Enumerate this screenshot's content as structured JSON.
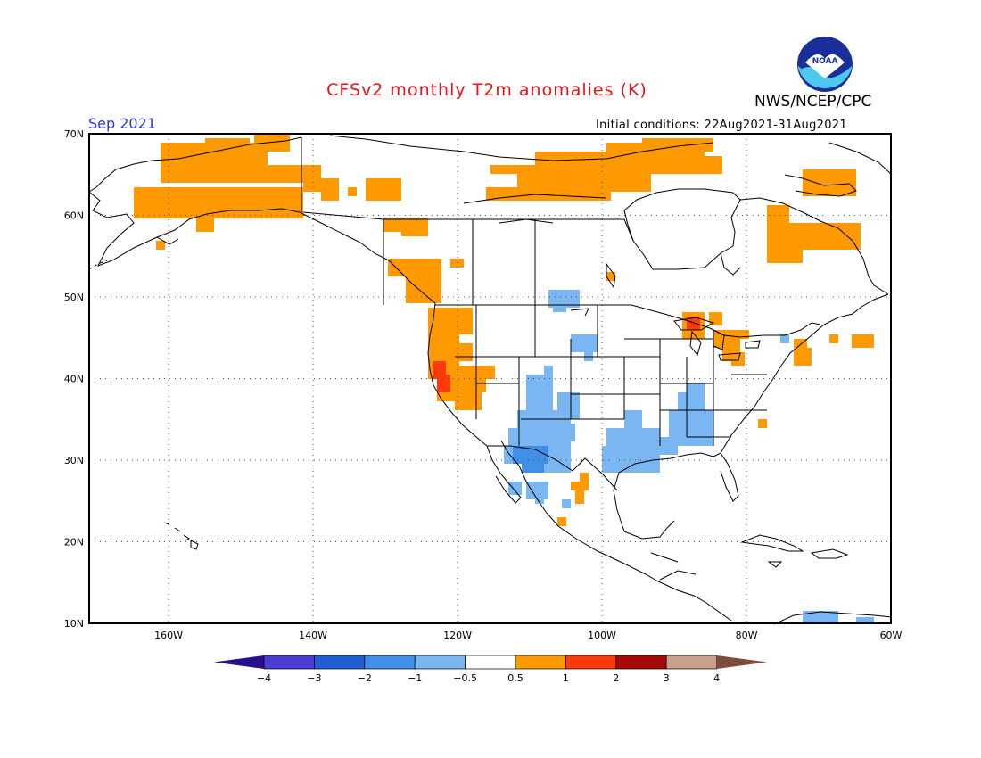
{
  "header": {
    "title": "CFSv2 monthly T2m anomalies (K)",
    "agency": "NWS/NCEP/CPC",
    "logo_text": "NOAA",
    "valid_month": "Sep 2021",
    "initial_conditions": "Initial conditions: 22Aug2021-31Aug2021"
  },
  "map": {
    "region": "North America",
    "projection": "lat-lon",
    "lon_range": [
      -171,
      -60
    ],
    "lat_range": [
      10,
      70
    ],
    "lon_ticks": [
      "160W",
      "140W",
      "120W",
      "100W",
      "80W",
      "60W"
    ],
    "lat_ticks": [
      "10N",
      "20N",
      "30N",
      "40N",
      "50N",
      "60N",
      "70N"
    ],
    "grid": "dotted"
  },
  "colorbar": {
    "labels": [
      "−4",
      "−3",
      "−2",
      "−1",
      "−0.5",
      "0.5",
      "1",
      "2",
      "3",
      "4"
    ],
    "colors": [
      "#2a0c8e",
      "#4b3dd4",
      "#1f5fd2",
      "#3f8ee8",
      "#79b6f2",
      "#ffffff",
      "#ff9900",
      "#ff3a0a",
      "#a50a0a",
      "#c9a08c",
      "#7d4c3c"
    ]
  },
  "anomalies": {
    "warm": "#ff9900",
    "hot": "#ff3a0a",
    "cool": "#79b6f2",
    "cold": "#3f8ee8"
  }
}
